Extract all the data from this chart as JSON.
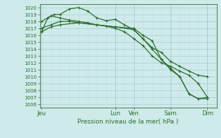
{
  "title": "Pression niveau de la mer( hPa )",
  "background_color": "#ceeaea",
  "grid_color_major": "#aacece",
  "grid_color_minor": "#c0dede",
  "line_color": "#2d6e2d",
  "ylim": [
    1005.5,
    1020.5
  ],
  "yticks": [
    1006,
    1007,
    1008,
    1009,
    1010,
    1011,
    1012,
    1013,
    1014,
    1015,
    1016,
    1017,
    1018,
    1019,
    1020
  ],
  "xtick_labels": [
    "Jeu",
    "Lun",
    "Ven",
    "Sam",
    "Dim"
  ],
  "xtick_positions": [
    0,
    4.0,
    5.0,
    7.0,
    9.0
  ],
  "vline_positions": [
    0,
    4.0,
    5.0,
    7.0,
    9.0
  ],
  "xlim": [
    -0.1,
    9.5
  ],
  "series1": {
    "x": [
      0,
      0.33,
      0.67,
      1.0,
      1.5,
      2.0,
      2.5,
      3.0,
      3.5,
      4.0,
      4.5,
      5.0,
      5.5,
      6.0,
      6.5,
      7.0,
      7.5,
      8.0,
      8.5,
      9.0
    ],
    "y": [
      1016.5,
      1018.5,
      1019.0,
      1019.0,
      1019.8,
      1020.0,
      1019.5,
      1018.5,
      1018.1,
      1018.3,
      1017.5,
      1016.8,
      1015.5,
      1014.2,
      1013.5,
      1012.2,
      1011.5,
      1010.8,
      1010.2,
      1010.0
    ]
  },
  "series2": {
    "x": [
      0,
      0.5,
      1.0,
      1.5,
      2.0,
      2.5,
      3.0,
      3.5,
      4.0,
      4.5,
      5.0,
      5.5,
      6.0,
      6.5,
      7.0,
      7.5,
      8.0,
      8.5,
      9.0
    ],
    "y": [
      1018.0,
      1018.8,
      1018.5,
      1018.2,
      1018.0,
      1017.8,
      1017.5,
      1017.3,
      1017.0,
      1016.5,
      1015.5,
      1014.5,
      1013.0,
      1012.0,
      1011.5,
      1010.8,
      1010.2,
      1009.0,
      1007.0
    ]
  },
  "series3": {
    "x": [
      0,
      0.5,
      1.0,
      1.5,
      2.0,
      3.0,
      4.0,
      5.0,
      5.5,
      6.0,
      6.5,
      7.0,
      7.5,
      8.0,
      8.5,
      9.0
    ],
    "y": [
      1017.0,
      1017.5,
      1018.0,
      1018.0,
      1017.8,
      1017.5,
      1017.2,
      1017.0,
      1016.0,
      1015.2,
      1012.5,
      1011.2,
      1010.0,
      1007.5,
      1006.8,
      1006.8
    ]
  },
  "series4": {
    "x": [
      0,
      0.5,
      1.0,
      2.0,
      3.0,
      4.0,
      5.0,
      5.5,
      6.0,
      6.5,
      7.0,
      7.5,
      8.0,
      8.5,
      9.0
    ],
    "y": [
      1016.5,
      1017.2,
      1017.5,
      1017.8,
      1017.5,
      1017.2,
      1016.8,
      1015.5,
      1014.0,
      1012.5,
      1011.0,
      1010.0,
      1007.5,
      1006.8,
      1007.0
    ]
  }
}
